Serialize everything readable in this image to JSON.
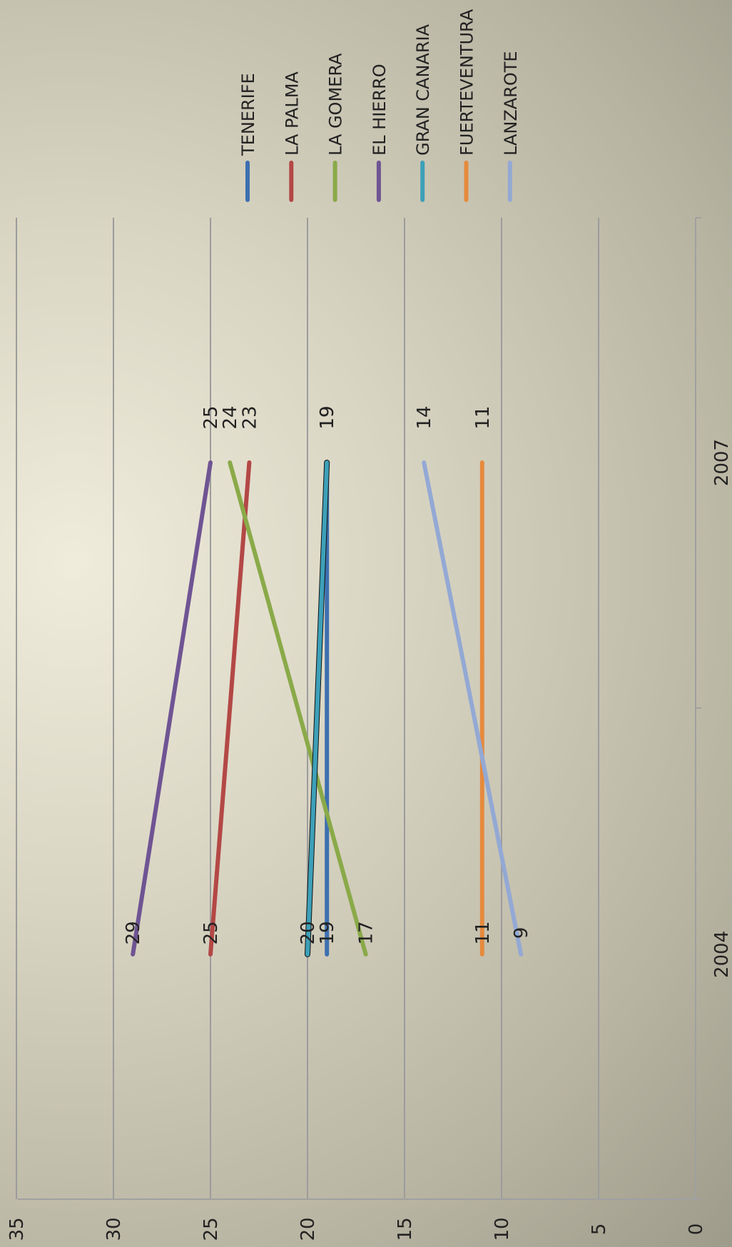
{
  "chart_data": {
    "type": "line",
    "orientation": "rotated-90-clockwise",
    "title": "",
    "xlabel": "",
    "ylabel": "",
    "categories": [
      "2004",
      "2007"
    ],
    "ylim": [
      0,
      35
    ],
    "yticks": [
      "0",
      "5",
      "10",
      "15",
      "20",
      "25",
      "30",
      "35"
    ],
    "grid": true,
    "legend_position": "right",
    "series": [
      {
        "name": "TENERIFE",
        "values": [
          19,
          19
        ],
        "color": "#3d70b0"
      },
      {
        "name": "LA PALMA",
        "values": [
          25,
          23
        ],
        "color": "#b34846"
      },
      {
        "name": "LA GOMERA",
        "values": [
          17,
          24
        ],
        "color": "#8aaa49"
      },
      {
        "name": "EL HIERRO",
        "values": [
          29,
          25
        ],
        "color": "#6f5493"
      },
      {
        "name": "GRAN CANARIA",
        "values": [
          20,
          19
        ],
        "color": "#3da0b8"
      },
      {
        "name": "FUERTEVENTURA",
        "values": [
          11,
          11
        ],
        "color": "#e58a3e"
      },
      {
        "name": "LANZAROTE",
        "values": [
          9,
          14
        ],
        "color": "#93a9d4"
      }
    ]
  }
}
